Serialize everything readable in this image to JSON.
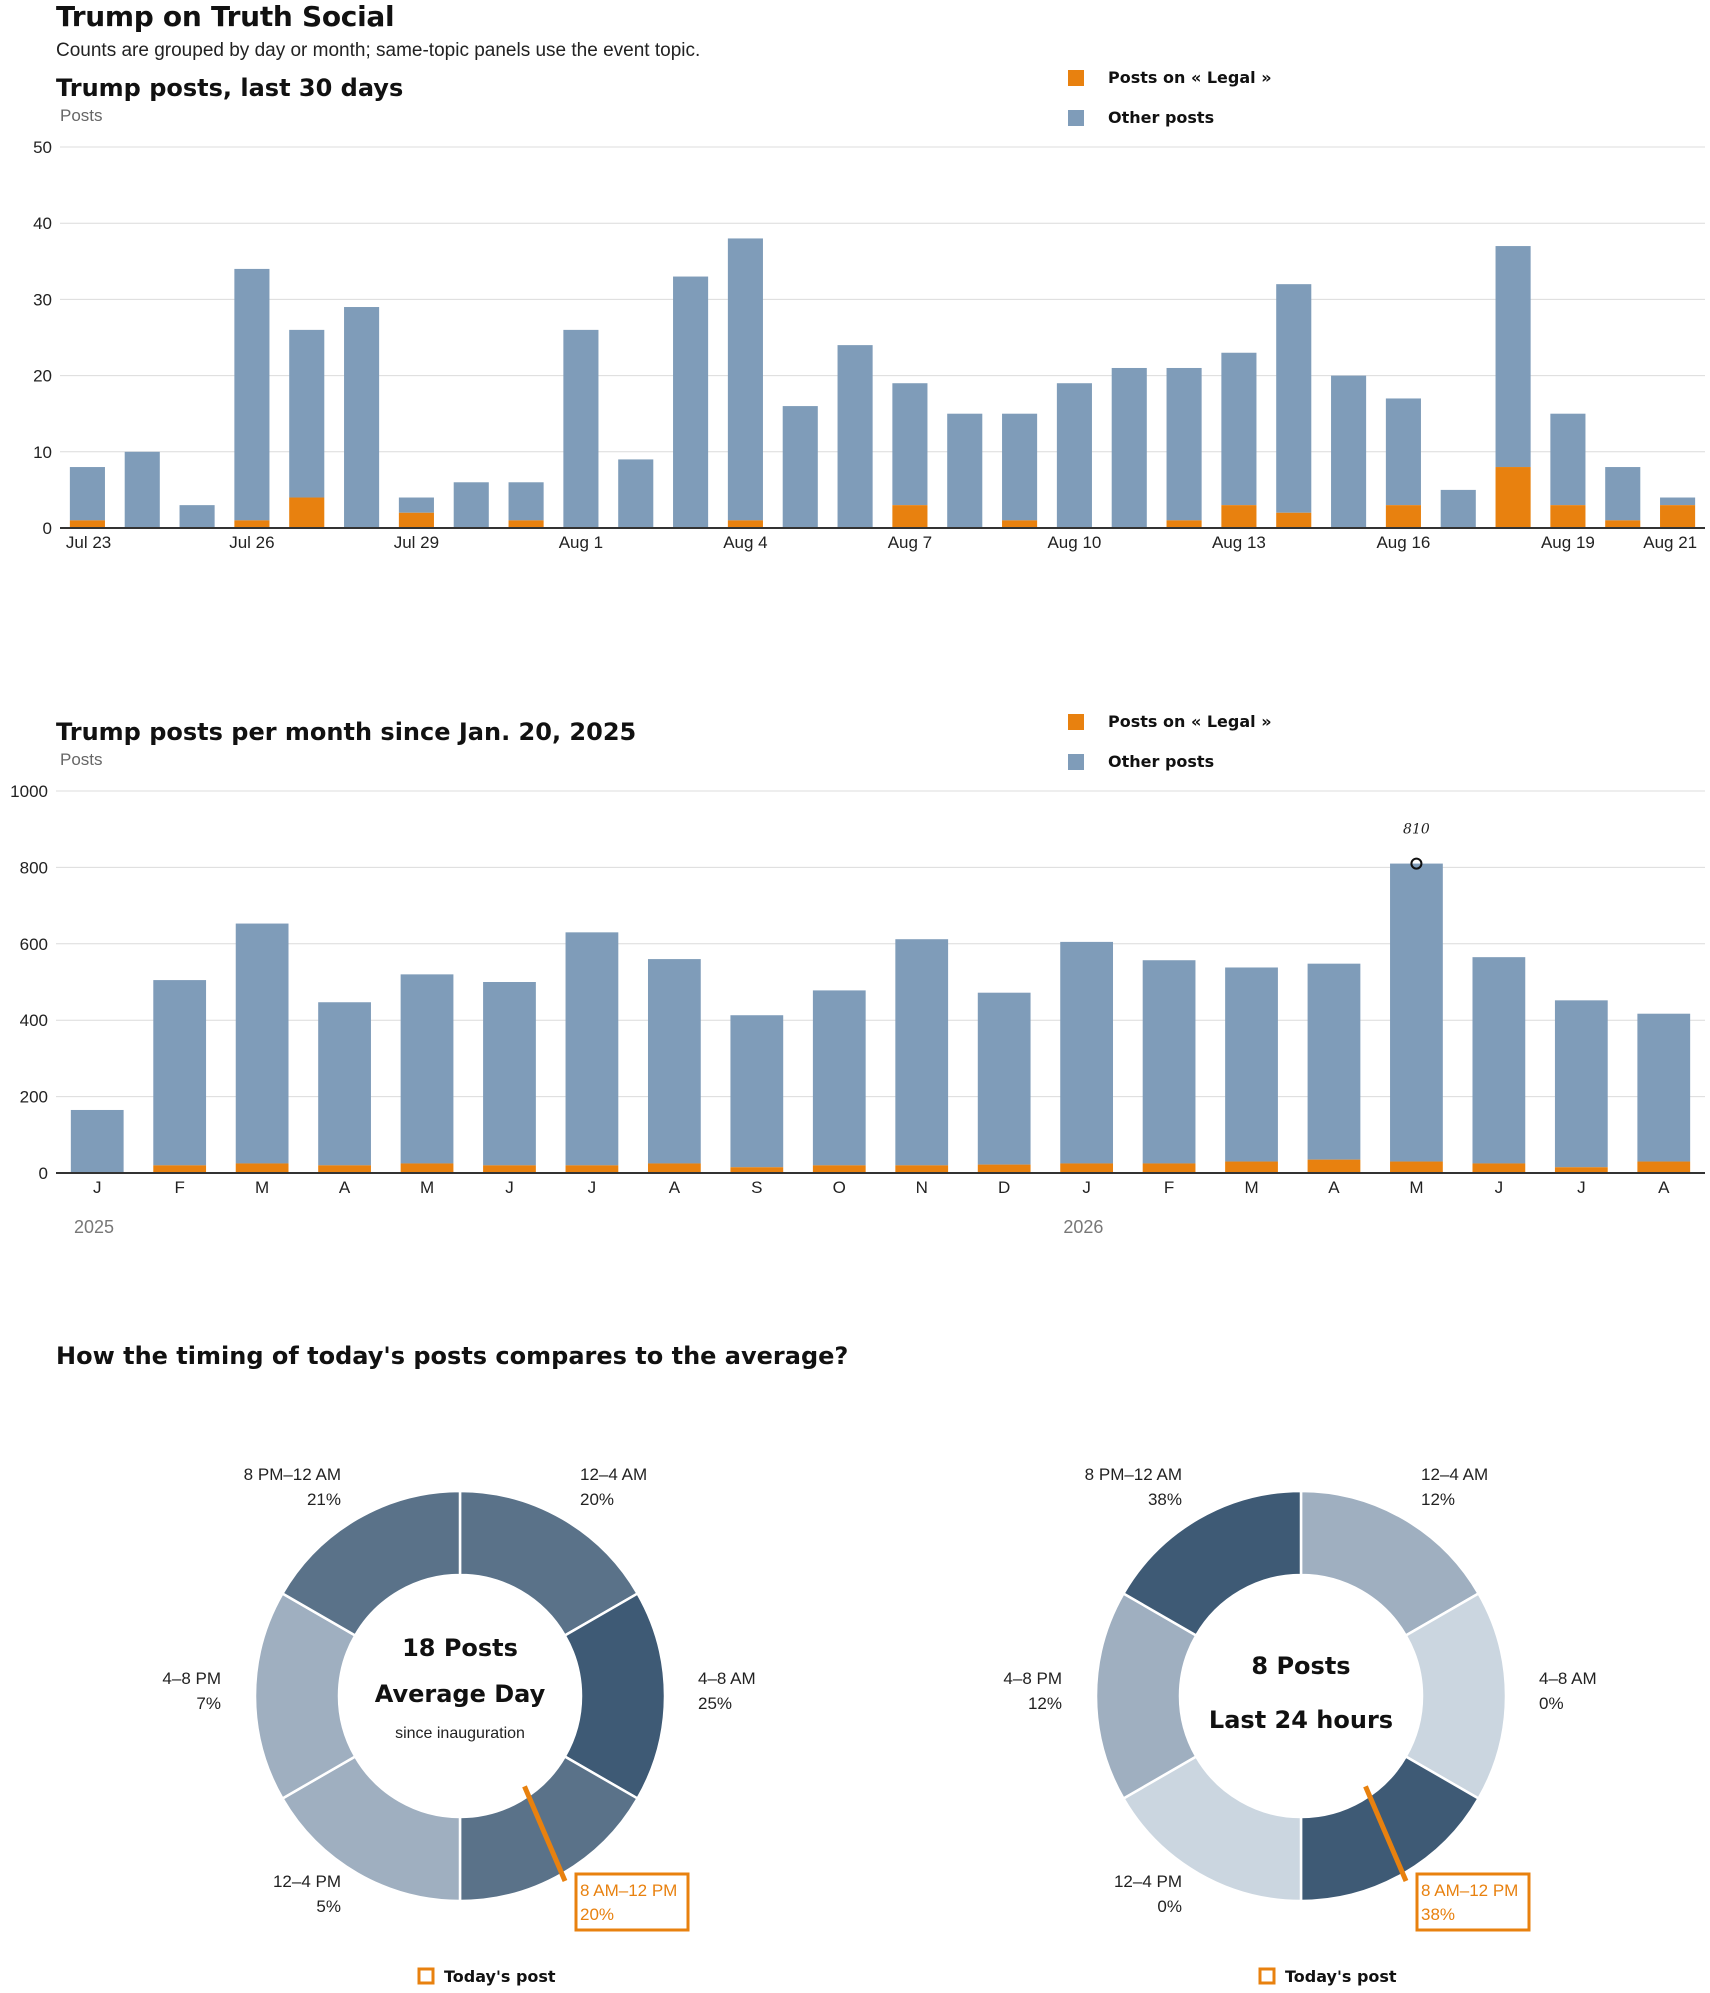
{
  "header": {
    "title": "Trump on Truth Social",
    "subtitle": "Counts are grouped by day or month; same-topic panels use the event topic."
  },
  "colors": {
    "topic": "#e8810f",
    "other": "#7f9cb9",
    "ring_dark": "#3e5a75",
    "ring_mid": "#5a7289",
    "ring_light": "#9fafc0",
    "ring_pale": "#cbd6e0"
  },
  "chart_data": [
    {
      "type": "bar",
      "stacked": true,
      "title": "Trump posts, last 30 days",
      "ylabel": "Posts",
      "ylim": [
        0,
        50
      ],
      "yticks": [
        0,
        10,
        20,
        30,
        40,
        50
      ],
      "grid": true,
      "legend": [
        "Posts on « Legal »",
        "Other posts"
      ],
      "categories": [
        "Jul 23",
        "Jul 24",
        "Jul 25",
        "Jul 26",
        "Jul 27",
        "Jul 28",
        "Jul 29",
        "Jul 30",
        "Jul 31",
        "Aug 1",
        "Aug 2",
        "Aug 3",
        "Aug 4",
        "Aug 5",
        "Aug 6",
        "Aug 7",
        "Aug 8",
        "Aug 9",
        "Aug 10",
        "Aug 11",
        "Aug 12",
        "Aug 13",
        "Aug 14",
        "Aug 15",
        "Aug 16",
        "Aug 17",
        "Aug 18",
        "Aug 19",
        "Aug 20",
        "Aug 21"
      ],
      "tick_labels": [
        "Jul 23",
        "",
        "",
        "Jul 26",
        "",
        "",
        "Jul 29",
        "",
        "",
        "Aug 1",
        "",
        "",
        "Aug 4",
        "",
        "",
        "Aug 7",
        "",
        "",
        "Aug 10",
        "",
        "",
        "Aug 13",
        "",
        "",
        "Aug 16",
        "",
        "",
        "Aug 19",
        "",
        "Aug 21"
      ],
      "series": [
        {
          "name": "Posts on « Legal »",
          "values": [
            1,
            0,
            0,
            1,
            4,
            0,
            2,
            0,
            1,
            0,
            0,
            0,
            1,
            0,
            0,
            3,
            0,
            1,
            0,
            0,
            1,
            3,
            2,
            0,
            3,
            0,
            8,
            3,
            1,
            3
          ]
        },
        {
          "name": "Other posts",
          "values": [
            7,
            10,
            3,
            33,
            22,
            29,
            2,
            6,
            5,
            26,
            9,
            33,
            37,
            16,
            24,
            16,
            15,
            14,
            19,
            21,
            20,
            20,
            30,
            20,
            14,
            5,
            29,
            12,
            7,
            1
          ]
        }
      ]
    },
    {
      "type": "bar",
      "stacked": true,
      "title": "Trump posts per month since Jan. 20, 2025",
      "ylabel": "Posts",
      "ylim": [
        0,
        1000
      ],
      "yticks": [
        0,
        200,
        400,
        600,
        800,
        1000
      ],
      "grid": true,
      "legend": [
        "Posts on « Legal »",
        "Other posts"
      ],
      "categories": [
        "J",
        "F",
        "M",
        "A",
        "M",
        "J",
        "J",
        "A",
        "S",
        "O",
        "N",
        "D",
        "J",
        "F",
        "M",
        "A",
        "M",
        "J",
        "J",
        "A"
      ],
      "years": [
        {
          "label": "2025",
          "index": 0
        },
        {
          "label": "2026",
          "index": 12
        }
      ],
      "annotation": {
        "index": 16,
        "value": 810,
        "label": "810"
      },
      "series": [
        {
          "name": "Posts on « Legal »",
          "values": [
            0,
            20,
            25,
            20,
            25,
            20,
            20,
            25,
            15,
            20,
            20,
            22,
            25,
            25,
            30,
            35,
            30,
            25,
            15,
            30
          ]
        },
        {
          "name": "Other posts",
          "values": [
            165,
            485,
            628,
            427,
            495,
            480,
            610,
            535,
            398,
            458,
            592,
            450,
            580,
            532,
            508,
            513,
            780,
            540,
            437,
            387
          ]
        }
      ]
    },
    {
      "type": "pie",
      "donut": true,
      "section_title": "How the timing of today's posts compares to the average?",
      "center_count": "18 Posts",
      "center_label": "Average Day",
      "center_sub": "since inauguration",
      "highlight_label": "8 AM–12 PM",
      "legend": "Today's post",
      "slices": [
        {
          "label": "12–4 AM",
          "value": 20,
          "display": "20%",
          "shade": "ring_mid"
        },
        {
          "label": "4–8 AM",
          "value": 25,
          "display": "25%",
          "shade": "ring_dark"
        },
        {
          "label": "8 AM–12 PM",
          "value": 20,
          "display": "20%",
          "shade": "ring_mid"
        },
        {
          "label": "12–4 PM",
          "value": 5,
          "display": "5%",
          "shade": "ring_light"
        },
        {
          "label": "4–8 PM",
          "value": 7,
          "display": "7%",
          "shade": "ring_light"
        },
        {
          "label": "8 PM–12 AM",
          "value": 21,
          "display": "21%",
          "shade": "ring_mid"
        }
      ]
    },
    {
      "type": "pie",
      "donut": true,
      "center_count": "8 Posts",
      "center_label": "Last 24 hours",
      "highlight_label": "8 AM–12 PM",
      "legend": "Today's post",
      "slices": [
        {
          "label": "12–4 AM",
          "value": 12,
          "display": "12%",
          "shade": "ring_light"
        },
        {
          "label": "4–8 AM",
          "value": 0,
          "display": "0%",
          "shade": "ring_pale"
        },
        {
          "label": "8 AM–12 PM",
          "value": 38,
          "display": "38%",
          "shade": "ring_dark"
        },
        {
          "label": "12–4 PM",
          "value": 0,
          "display": "0%",
          "shade": "ring_pale"
        },
        {
          "label": "4–8 PM",
          "value": 12,
          "display": "12%",
          "shade": "ring_light"
        },
        {
          "label": "8 PM–12 AM",
          "value": 38,
          "display": "38%",
          "shade": "ring_dark"
        }
      ]
    }
  ]
}
